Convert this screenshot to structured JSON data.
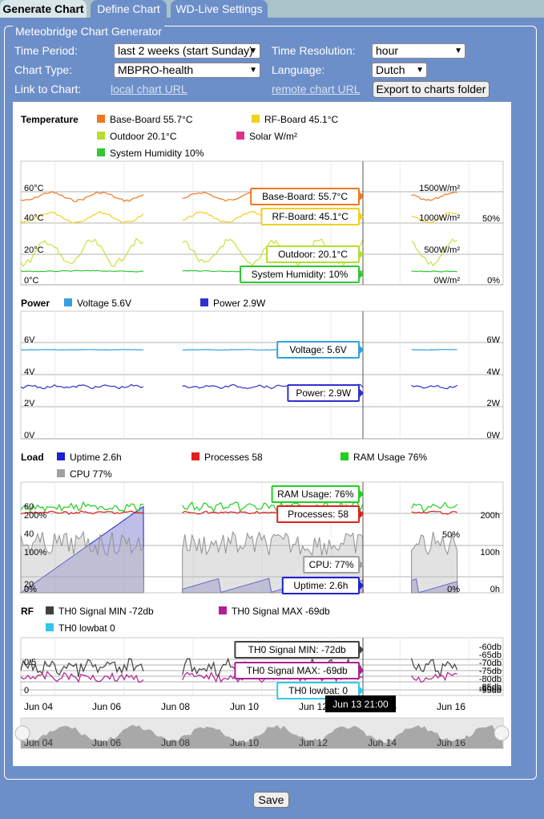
{
  "tabs": [
    "Generate Chart",
    "Define Chart",
    "WD-Live Settings"
  ],
  "form": {
    "legend": "Meteobridge Chart Generator",
    "time_period_label": "Time Period:",
    "time_period_value": "last 2 weeks (start Sunday)",
    "time_resolution_label": "Time Resolution:",
    "time_resolution_value": "hour",
    "chart_type_label": "Chart Type:",
    "chart_type_value": "MBPRO-health",
    "language_label": "Language:",
    "language_value": "Dutch",
    "link_label": "Link to Chart:",
    "local_link": "local chart URL",
    "remote_link": "remote chart URL",
    "export_button": "Export to charts folder",
    "save_button": "Save"
  },
  "chart_data": {
    "type": "line",
    "x_ticks": [
      "Jun 04",
      "Jun 06",
      "Jun 08",
      "Jun 10",
      "Jun 12",
      "Jun 14",
      "Jun 16"
    ],
    "cursor_label": "Jun 13 21:00",
    "panels": [
      {
        "title": "Temperature",
        "legend": [
          {
            "name": "Base-Board 55.7°C",
            "color": "#f07820"
          },
          {
            "name": "RF-Board 45.1°C",
            "color": "#f0d020"
          },
          {
            "name": "Outdoor 20.1°C",
            "color": "#b8dc30"
          },
          {
            "name": "Solar W/m²",
            "color": "#e0308c"
          },
          {
            "name": "System Humidity 10%",
            "color": "#30c830"
          }
        ],
        "left_ticks": [
          "60°C",
          "40°C",
          "20°C",
          "0°C"
        ],
        "right_ticks": [
          "1500W/m²",
          "1000W/m²",
          "500W/m²",
          "0W/m²"
        ],
        "right2_ticks": [
          "50%",
          "0%"
        ],
        "callouts": [
          {
            "text": "Base-Board: 55.7°C",
            "color": "#f07820"
          },
          {
            "text": "RF-Board: 45.1°C",
            "color": "#f0d020"
          },
          {
            "text": "Outdoor: 20.1°C",
            "color": "#b8dc30"
          },
          {
            "text": "System Humidity: 10%",
            "color": "#30c830"
          }
        ]
      },
      {
        "title": "Power",
        "legend": [
          {
            "name": "Voltage 5.6V",
            "color": "#30a0e0"
          },
          {
            "name": "Power 2.9W",
            "color": "#3030d0"
          }
        ],
        "left_ticks": [
          "6V",
          "4V",
          "2V",
          "0V"
        ],
        "right_ticks": [
          "6W",
          "4W",
          "2W",
          "0W"
        ],
        "callouts": [
          {
            "text": "Voltage: 5.6V",
            "color": "#30a0e0"
          },
          {
            "text": "Power: 2.9W",
            "color": "#3030d0"
          }
        ]
      },
      {
        "title": "Load",
        "legend": [
          {
            "name": "Uptime 2.6h",
            "color": "#2020d0"
          },
          {
            "name": "Processes 58",
            "color": "#e02020"
          },
          {
            "name": "RAM Usage 76%",
            "color": "#20d020"
          },
          {
            "name": "CPU 77%",
            "color": "#a0a0a0"
          }
        ],
        "left_ticks": [
          "60",
          "200%",
          "40",
          "100%",
          "20",
          "0%"
        ],
        "right_ticks": [
          "200h",
          "100h",
          "0h"
        ],
        "right2_ticks": [
          "50%",
          "0%"
        ],
        "callouts": [
          {
            "text": "RAM Usage: 76%",
            "color": "#20d020"
          },
          {
            "text": "Processes: 58",
            "color": "#e02020"
          },
          {
            "text": "CPU: 77%",
            "color": "#a0a0a0"
          },
          {
            "text": "Uptime: 2.6h",
            "color": "#2020d0"
          }
        ]
      },
      {
        "title": "RF",
        "legend": [
          {
            "name": "TH0 Signal MIN -72db",
            "color": "#404040"
          },
          {
            "name": "TH0 Signal MAX -69db",
            "color": "#b02090"
          },
          {
            "name": "TH0 lowbat 0",
            "color": "#30c8e8"
          }
        ],
        "left_ticks": [
          "0.5",
          "0"
        ],
        "right_ticks": [
          "-60db",
          "-65db",
          "-70db",
          "-75db",
          "-80db",
          "-85db",
          "-90db",
          "-95db"
        ],
        "callouts": [
          {
            "text": "TH0 Signal MIN: -72db",
            "color": "#404040"
          },
          {
            "text": "TH0 Signal MAX: -69db",
            "color": "#b02090"
          },
          {
            "text": "TH0 lowbat: 0",
            "color": "#30c8e8"
          }
        ]
      }
    ]
  }
}
